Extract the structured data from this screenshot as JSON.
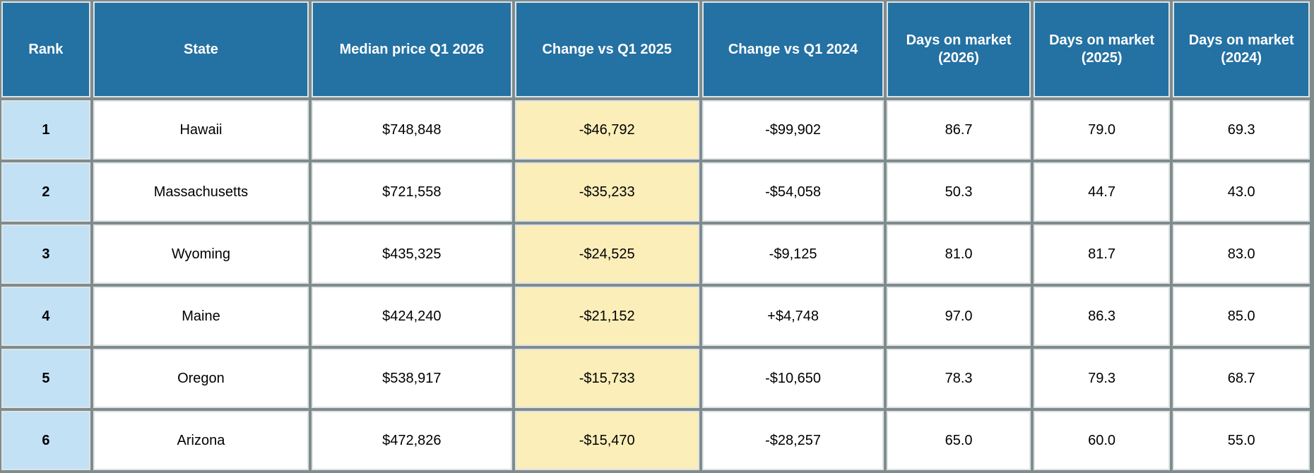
{
  "table": {
    "headers": {
      "rank": "Rank",
      "state": "State",
      "median": "Median price Q1 2026",
      "chg25": "Change vs Q1 2025",
      "chg24": "Change vs Q1 2024",
      "dom26_l1": "Days on market",
      "dom26_l2": "(2026)",
      "dom25_l1": "Days on market",
      "dom25_l2": "(2025)",
      "dom24_l1": "Days on market",
      "dom24_l2": "(2024)"
    },
    "rows": [
      {
        "rank": "1",
        "state": "Hawaii",
        "median": "$748,848",
        "chg25": "-$46,792",
        "chg24": "-$99,902",
        "dom26": "86.7",
        "dom25": "79.0",
        "dom24": "69.3"
      },
      {
        "rank": "2",
        "state": "Massachusetts",
        "median": "$721,558",
        "chg25": "-$35,233",
        "chg24": "-$54,058",
        "dom26": "50.3",
        "dom25": "44.7",
        "dom24": "43.0"
      },
      {
        "rank": "3",
        "state": "Wyoming",
        "median": "$435,325",
        "chg25": "-$24,525",
        "chg24": "-$9,125",
        "dom26": "81.0",
        "dom25": "81.7",
        "dom24": "83.0"
      },
      {
        "rank": "4",
        "state": "Maine",
        "median": "$424,240",
        "chg25": "-$21,152",
        "chg24": "+$4,748",
        "dom26": "97.0",
        "dom25": "86.3",
        "dom24": "85.0"
      },
      {
        "rank": "5",
        "state": "Oregon",
        "median": "$538,917",
        "chg25": "-$15,733",
        "chg24": "-$10,650",
        "dom26": "78.3",
        "dom25": "79.3",
        "dom24": "68.7"
      },
      {
        "rank": "6",
        "state": "Arizona",
        "median": "$472,826",
        "chg25": "-$15,470",
        "chg24": "-$28,257",
        "dom26": "65.0",
        "dom25": "60.0",
        "dom24": "55.0"
      }
    ]
  },
  "colors": {
    "header_bg": "#2471a3",
    "rank_bg": "#c2e1f5",
    "highlight_bg": "#fbeeb9",
    "grid": "#7f8c8d"
  }
}
